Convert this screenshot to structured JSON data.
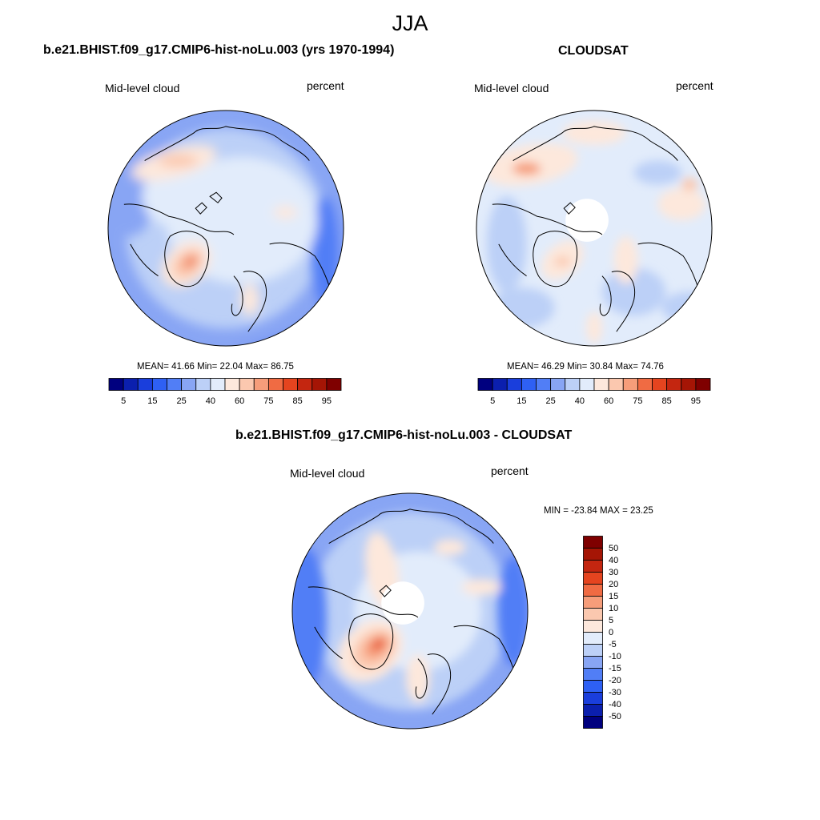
{
  "figure": {
    "season": "JJA",
    "colors": {
      "sequential": [
        "#00007f",
        "#0b1fae",
        "#1a3edc",
        "#2e60f4",
        "#517ef6",
        "#88a5f4",
        "#bcd0f7",
        "#e2ecfb",
        "#fde8dc",
        "#fbc8af",
        "#f69d7a",
        "#f06b43",
        "#e5441f",
        "#c42610",
        "#a51505",
        "#7f0000"
      ],
      "diverging": [
        "#00007f",
        "#0b1fae",
        "#1a3edc",
        "#2e60f4",
        "#517ef6",
        "#88a5f4",
        "#bcd0f7",
        "#e2ecfb",
        "#fde8dc",
        "#fbc8af",
        "#f69d7a",
        "#f06b43",
        "#e5441f",
        "#c42610",
        "#a51505",
        "#7f0000"
      ],
      "coastline": "#000000",
      "missing": "#ffffff"
    }
  },
  "panels": [
    {
      "id": "model",
      "title": "b.e21.BHIST.f09_g17.CMIP6-hist-noLu.003 (yrs 1970-1994)",
      "variable": "Mid-level cloud",
      "units": "percent",
      "stats": {
        "mean": "41.66",
        "min": "22.04",
        "max": "86.75"
      },
      "stats_text": "MEAN=  41.66  Min=  22.04  Max=  86.75",
      "colorbar": {
        "ticks": [
          "5",
          "15",
          "25",
          "40",
          "60",
          "75",
          "85",
          "95"
        ]
      }
    },
    {
      "id": "obs",
      "title": "CLOUDSAT",
      "variable": "Mid-level cloud",
      "units": "percent",
      "stats": {
        "mean": "46.29",
        "min": "30.84",
        "max": "74.76"
      },
      "stats_text": "MEAN=  46.29  Min=  30.84  Max=  74.76",
      "colorbar": {
        "ticks": [
          "5",
          "15",
          "25",
          "40",
          "60",
          "75",
          "85",
          "95"
        ]
      }
    },
    {
      "id": "diff",
      "title": "b.e21.BHIST.f09_g17.CMIP6-hist-noLu.003 - CLOUDSAT",
      "variable": "Mid-level cloud",
      "units": "percent",
      "stats": {
        "min": "-23.84",
        "max": "23.25"
      },
      "stats_text": "MIN = -23.84 MAX =  23.25",
      "colorbar": {
        "ticks": [
          "50",
          "40",
          "30",
          "20",
          "15",
          "10",
          "5",
          "0",
          "-5",
          "-10",
          "-15",
          "-20",
          "-30",
          "-40",
          "-50"
        ]
      }
    }
  ]
}
